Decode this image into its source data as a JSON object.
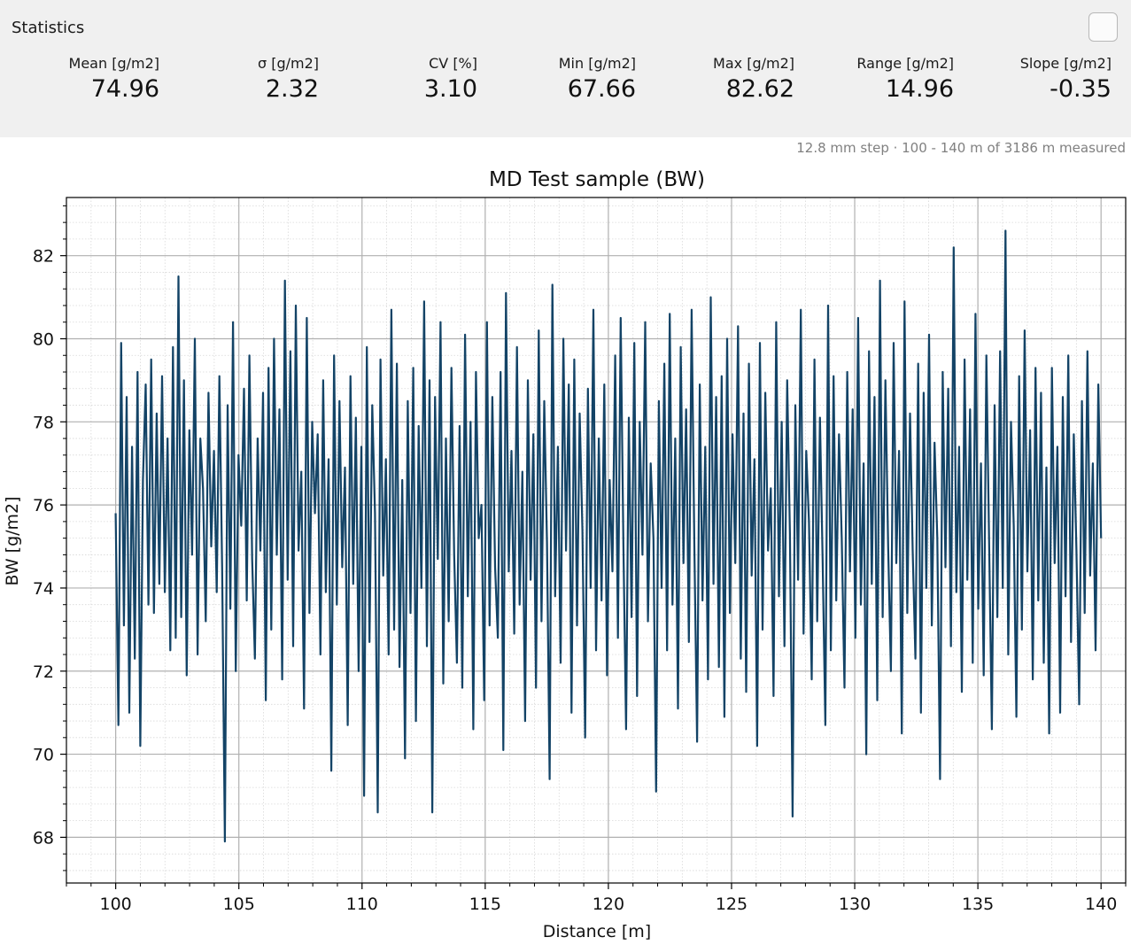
{
  "stats": {
    "title": "Statistics",
    "items": [
      {
        "label": "Mean [g/m2]",
        "value": "74.96"
      },
      {
        "label": "σ [g/m2]",
        "value": "2.32"
      },
      {
        "label": "CV [%]",
        "value": "3.10"
      },
      {
        "label": "Min [g/m2]",
        "value": "67.66"
      },
      {
        "label": "Max [g/m2]",
        "value": "82.62"
      },
      {
        "label": "Range [g/m2]",
        "value": "14.96"
      },
      {
        "label": "Slope [g/m2]",
        "value": "-0.35"
      }
    ]
  },
  "caption": "12.8 mm step · 100 - 140 m of 3186 m measured",
  "colors": {
    "panel_bg": "#f0f0f0",
    "line": "#134366",
    "grid_major": "#b0b0b0",
    "grid_minor": "#d8d8d8"
  },
  "chart_data": {
    "type": "line",
    "title": "MD Test sample (BW)",
    "xlabel": "Distance [m]",
    "ylabel": "BW [g/m2]",
    "xlim": [
      98,
      141
    ],
    "ylim": [
      66.9,
      83.4
    ],
    "xticks": [
      100,
      105,
      110,
      115,
      120,
      125,
      130,
      135,
      140
    ],
    "yticks": [
      68,
      70,
      72,
      74,
      76,
      78,
      80,
      82
    ],
    "grid": true,
    "minor_grid": true,
    "legend": "none",
    "series": [
      {
        "x_start": 100,
        "x_end": 140,
        "values": [
          75.8,
          70.7,
          79.9,
          73.1,
          78.6,
          71.0,
          77.4,
          72.3,
          79.2,
          70.2,
          76.6,
          78.9,
          73.6,
          79.5,
          73.4,
          78.2,
          74.1,
          79.1,
          73.9,
          77.6,
          72.5,
          79.8,
          72.8,
          81.5,
          73.3,
          79.0,
          71.9,
          77.8,
          74.8,
          80.0,
          72.4,
          77.6,
          76.4,
          73.2,
          78.7,
          75.0,
          77.3,
          73.9,
          79.1,
          74.5,
          67.9,
          78.4,
          73.5,
          80.4,
          72.0,
          77.2,
          75.5,
          78.8,
          73.7,
          79.6,
          74.7,
          72.3,
          77.6,
          74.9,
          78.7,
          71.3,
          79.3,
          73.0,
          80.0,
          74.8,
          78.3,
          71.8,
          81.4,
          74.2,
          79.7,
          72.6,
          80.8,
          74.9,
          76.8,
          71.1,
          80.5,
          73.4,
          78.0,
          75.8,
          77.7,
          72.4,
          79.0,
          73.9,
          77.1,
          69.6,
          79.6,
          73.6,
          78.5,
          74.5,
          76.9,
          70.7,
          79.1,
          74.1,
          78.1,
          72.0,
          77.4,
          69.0,
          79.8,
          72.7,
          78.4,
          75.8,
          68.6,
          79.5,
          74.3,
          77.1,
          72.4,
          80.7,
          73.0,
          79.4,
          72.1,
          76.6,
          69.9,
          78.5,
          73.4,
          79.3,
          70.8,
          77.9,
          74.0,
          80.9,
          72.6,
          79.0,
          68.6,
          78.6,
          74.7,
          80.4,
          71.7,
          77.6,
          73.2,
          79.3,
          74.8,
          72.2,
          77.9,
          71.6,
          80.1,
          73.8,
          78.0,
          70.6,
          79.2,
          75.2,
          76.0,
          71.3,
          80.4,
          73.1,
          78.6,
          74.5,
          72.8,
          79.2,
          70.1,
          81.1,
          74.4,
          77.3,
          72.9,
          79.8,
          73.6,
          76.8,
          70.8,
          79.0,
          74.2,
          77.7,
          71.6,
          80.2,
          73.2,
          78.5,
          75.1,
          69.4,
          81.3,
          73.8,
          77.4,
          72.2,
          80.0,
          74.9,
          78.9,
          71.0,
          79.5,
          73.1,
          78.2,
          75.4,
          70.4,
          78.8,
          74.0,
          80.7,
          72.5,
          77.6,
          73.7,
          78.9,
          71.9,
          76.6,
          74.4,
          79.6,
          72.8,
          80.5,
          75.0,
          70.6,
          78.1,
          73.3,
          79.9,
          71.4,
          78.0,
          74.8,
          80.4,
          73.2,
          77.0,
          75.2,
          69.1,
          78.5,
          74.0,
          79.4,
          72.5,
          80.6,
          73.6,
          77.6,
          71.1,
          79.8,
          74.6,
          78.3,
          72.7,
          80.7,
          75.0,
          70.3,
          78.9,
          73.7,
          77.4,
          71.8,
          81.0,
          74.1,
          78.6,
          72.1,
          79.1,
          70.9,
          80.0,
          73.4,
          77.7,
          74.6,
          80.3,
          72.3,
          78.2,
          71.5,
          79.4,
          74.3,
          77.1,
          70.2,
          79.9,
          73.0,
          78.7,
          74.9,
          76.4,
          71.4,
          80.4,
          73.8,
          78.0,
          72.6,
          79.0,
          75.3,
          68.5,
          78.4,
          74.2,
          80.7,
          72.9,
          77.3,
          75.6,
          71.8,
          79.5,
          73.2,
          78.1,
          74.7,
          70.7,
          80.8,
          72.5,
          79.1,
          73.7,
          77.7,
          75.2,
          71.6,
          79.2,
          74.4,
          78.3,
          72.8,
          80.5,
          73.6,
          77.0,
          70.0,
          79.7,
          74.1,
          78.6,
          71.3,
          81.4,
          73.3,
          79.0,
          75.0,
          72.0,
          79.9,
          74.6,
          77.3,
          70.5,
          80.9,
          73.4,
          78.2,
          74.9,
          72.3,
          79.4,
          71.0,
          78.7,
          74.0,
          80.1,
          73.1,
          77.5,
          75.2,
          69.4,
          79.2,
          74.5,
          78.8,
          72.6,
          82.2,
          73.9,
          77.4,
          71.5,
          79.5,
          74.2,
          78.3,
          72.2,
          80.6,
          73.5,
          77.0,
          71.9,
          79.6,
          75.1,
          70.6,
          78.4,
          73.3,
          79.7,
          74.0,
          82.6,
          72.4,
          78.0,
          75.5,
          70.9,
          79.1,
          73.0,
          80.2,
          74.4,
          77.8,
          71.8,
          79.3,
          73.7,
          78.7,
          72.2,
          76.9,
          70.5,
          79.3,
          74.6,
          77.4,
          71.0,
          78.6,
          73.8,
          79.6,
          72.7,
          77.7,
          74.9,
          71.2,
          78.5,
          73.4,
          79.7,
          74.3,
          77.0,
          72.5,
          78.9,
          75.2
        ]
      }
    ]
  }
}
